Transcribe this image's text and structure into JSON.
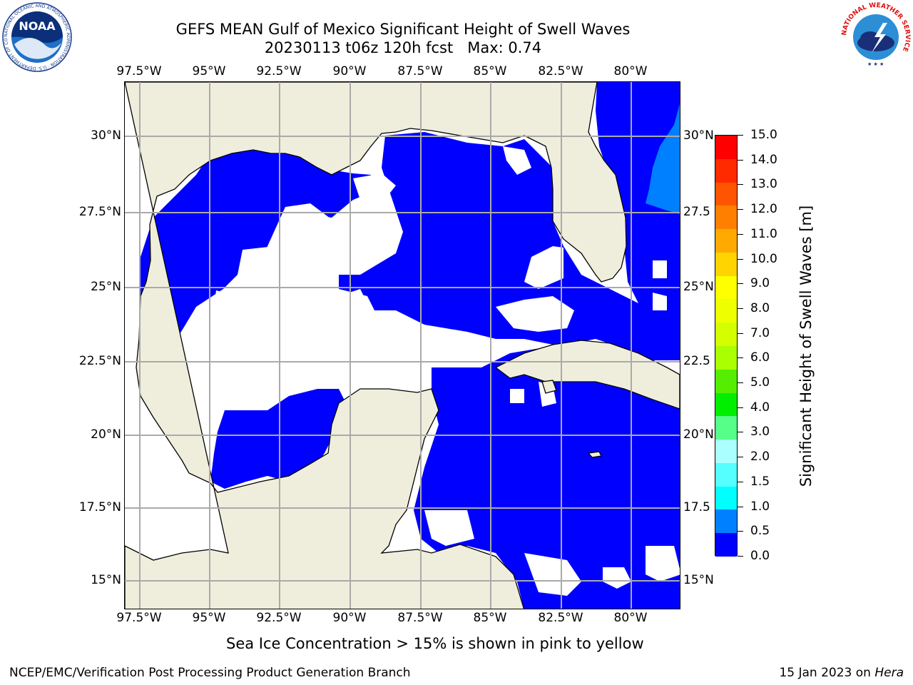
{
  "title": {
    "line1": "GEFS MEAN Gulf of Mexico Significant Height of Swell Waves",
    "line2": "20230113 t06z 120h fcst   Max: 0.74"
  },
  "map": {
    "lon_labels": [
      "97.5°W",
      "95°W",
      "92.5°W",
      "90°W",
      "87.5°W",
      "85°W",
      "82.5°W",
      "80°W"
    ],
    "lat_labels": [
      "30°N",
      "27.5°N",
      "25°N",
      "22.5°N",
      "20°N",
      "17.5°N",
      "15°N"
    ],
    "lat_labels_right": [
      "30°N",
      "27.5",
      "25°N",
      "22.5",
      "20°N",
      "17.5",
      "15°N"
    ],
    "land_color": "#efeedc",
    "field_colors": {
      "0-0.5": "#0000ff",
      "0.5-1.0": "#0080ff",
      "below-threshold": "#ffffff"
    }
  },
  "colorbar": {
    "title": "Significant Height of Swell Waves [m]",
    "ticks": [
      "15.0",
      "14.0",
      "13.0",
      "12.0",
      "11.0",
      "10.0",
      "9.0",
      "8.0",
      "7.0",
      "6.0",
      "5.0",
      "4.0",
      "3.0",
      "2.0",
      "1.5",
      "1.0",
      "0.5",
      "0.0"
    ],
    "colors": [
      "#ff0000",
      "#ff2a00",
      "#ff5500",
      "#ff8000",
      "#ffaa00",
      "#ffd400",
      "#ffff00",
      "#eeff00",
      "#d4ff00",
      "#aaff00",
      "#55ee00",
      "#00ee00",
      "#55ff88",
      "#aaffff",
      "#55ffff",
      "#00ffff",
      "#0080ff",
      "#0000ff"
    ]
  },
  "note": "Sea Ice Concentration > 15% is shown in pink to yellow",
  "footer": {
    "left": "NCEP/EMC/Verification Post Processing Product Generation Branch",
    "right_prefix": "15 Jan 2023 on ",
    "right_host": "Hera"
  },
  "logos": {
    "noaa": "NOAA",
    "noaa_ring": "NATIONAL OCEANIC AND ATMOSPHERIC ADMINISTRATION · U.S. DEPARTMENT OF COMMERCE",
    "nws_ring": "NATIONAL WEATHER SERVICE"
  }
}
